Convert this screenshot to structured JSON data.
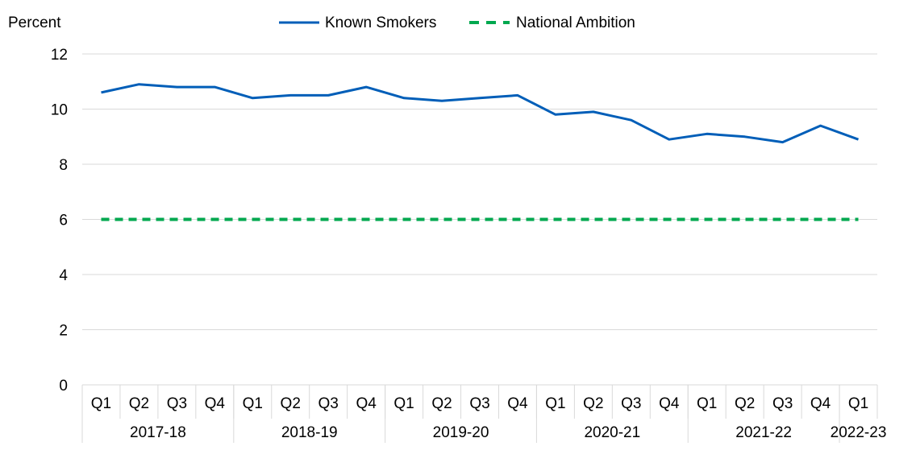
{
  "chart_data": {
    "type": "line",
    "y_unit_label": "Percent",
    "ylim": [
      0,
      12
    ],
    "y_ticks": [
      0,
      2,
      4,
      6,
      8,
      10,
      12
    ],
    "grid": "horizontal",
    "legend_position": "top-center",
    "x": [
      "Q1",
      "Q2",
      "Q3",
      "Q4",
      "Q1",
      "Q2",
      "Q3",
      "Q4",
      "Q1",
      "Q2",
      "Q3",
      "Q4",
      "Q1",
      "Q2",
      "Q3",
      "Q4",
      "Q1",
      "Q2",
      "Q3",
      "Q4",
      "Q1"
    ],
    "year_groups": [
      {
        "label": "2017-18",
        "count": 4
      },
      {
        "label": "2018-19",
        "count": 4
      },
      {
        "label": "2019-20",
        "count": 4
      },
      {
        "label": "2020-21",
        "count": 4
      },
      {
        "label": "2021-22",
        "count": 4
      },
      {
        "label": "2022-23",
        "count": 1
      }
    ],
    "series": [
      {
        "name": "Known Smokers",
        "color": "#005eb8",
        "style": "solid",
        "values": [
          10.6,
          10.9,
          10.8,
          10.8,
          10.4,
          10.5,
          10.5,
          10.8,
          10.4,
          10.3,
          10.4,
          10.5,
          9.8,
          9.9,
          9.6,
          8.9,
          9.1,
          9.0,
          8.8,
          9.4,
          8.9
        ]
      },
      {
        "name": "National Ambition",
        "color": "#00a84f",
        "style": "dashed",
        "values": [
          6,
          6,
          6,
          6,
          6,
          6,
          6,
          6,
          6,
          6,
          6,
          6,
          6,
          6,
          6,
          6,
          6,
          6,
          6,
          6,
          6
        ]
      }
    ]
  }
}
